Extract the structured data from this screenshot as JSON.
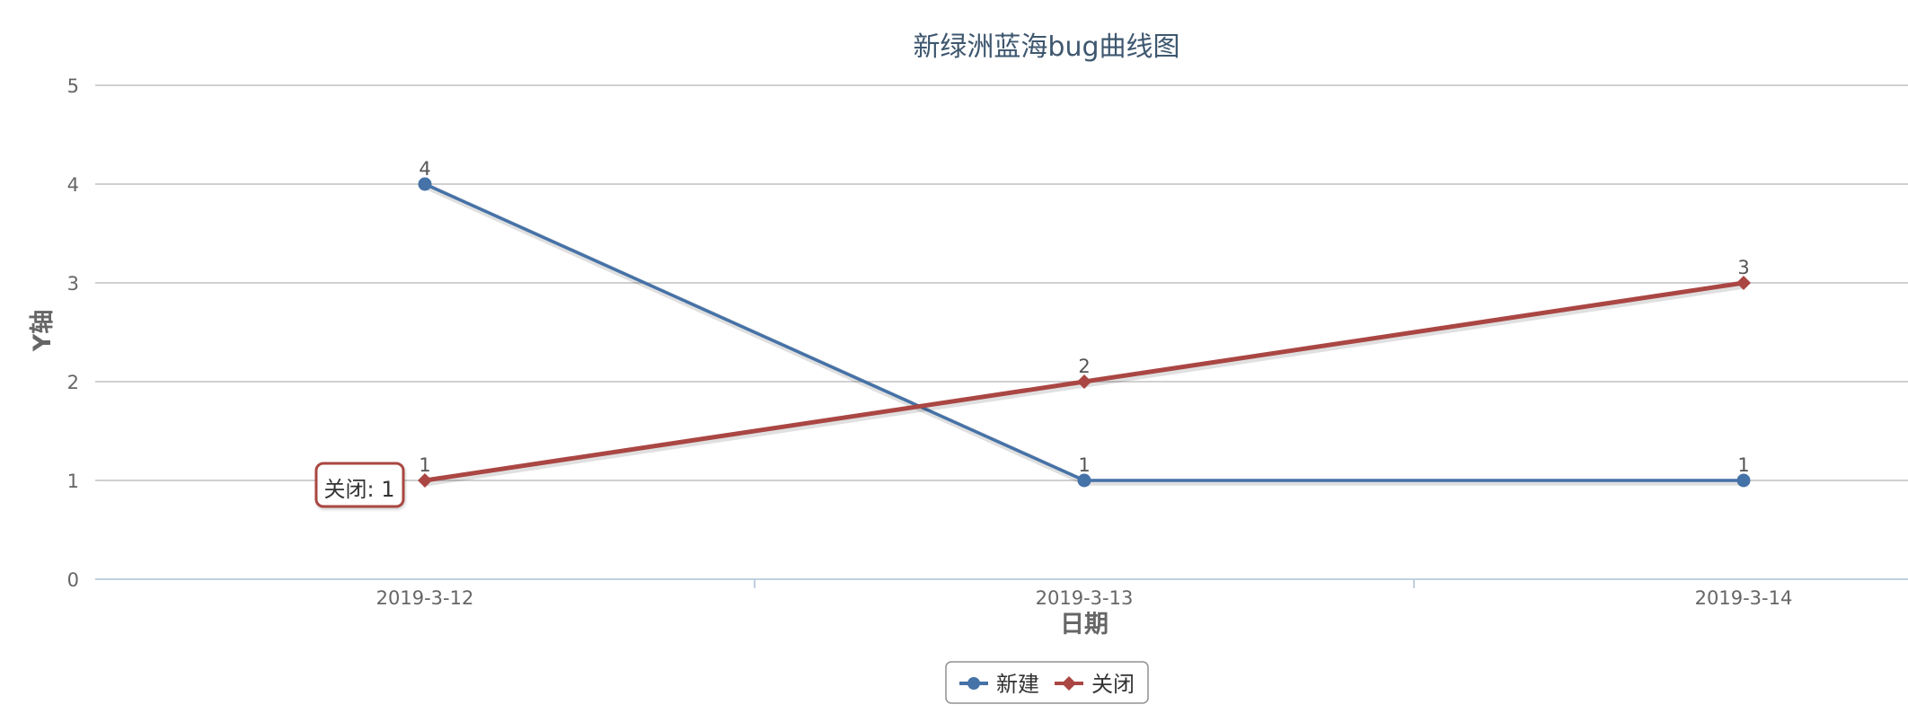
{
  "chart_data": {
    "type": "line",
    "title": "新绿洲蓝海bug曲线图",
    "xlabel": "日期",
    "ylabel": "Y轴",
    "categories": [
      "2019-3-12",
      "2019-3-13",
      "2019-3-14"
    ],
    "ylim": [
      0,
      5
    ],
    "yticks": [
      0,
      1,
      2,
      3,
      4,
      5
    ],
    "grid": true,
    "legend_position": "bottom-center",
    "series": [
      {
        "name": "新建",
        "values": [
          4,
          1,
          1
        ],
        "color": "#4572a7",
        "marker": "circle"
      },
      {
        "name": "关闭",
        "values": [
          1,
          2,
          3
        ],
        "color": "#aa4643",
        "marker": "diamond"
      }
    ],
    "tooltip": {
      "text": "关闭: 1",
      "series": "关闭",
      "category": "2019-3-12"
    }
  }
}
